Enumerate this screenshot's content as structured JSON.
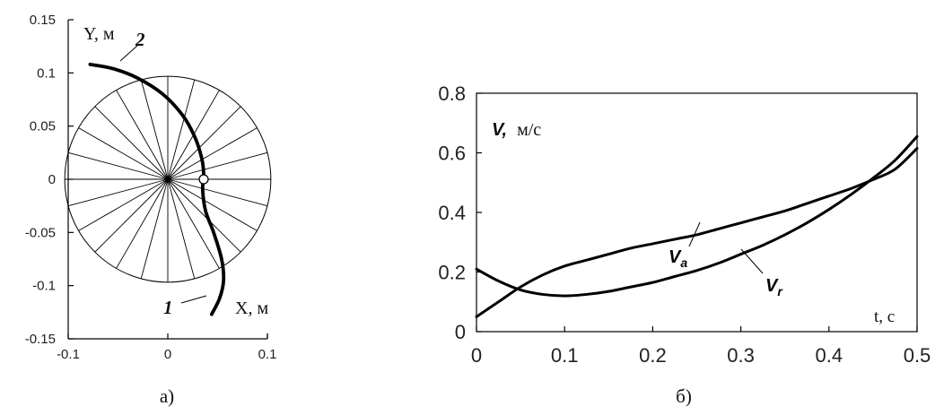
{
  "chart_data": [
    {
      "type": "line",
      "panel_label": "а)",
      "xlabel": "X, м",
      "ylabel": "Y, м",
      "xlim": [
        -0.1,
        0.1
      ],
      "ylim": [
        -0.15,
        0.15
      ],
      "xticks": [
        -0.1,
        0,
        0.1
      ],
      "yticks": [
        -0.15,
        -0.1,
        -0.05,
        0,
        0.05,
        0.1,
        0.15
      ],
      "xtick_labels": [
        "-0.1",
        "0",
        "0.1"
      ],
      "ytick_labels": [
        "-0.15",
        "-0.1",
        "-0.05",
        "0",
        "0.05",
        "0.1",
        "0.15"
      ],
      "circle": {
        "center": [
          0,
          0
        ],
        "radius": 0.1,
        "spokes": 24
      },
      "curve": {
        "x": [
          -0.078,
          -0.055,
          -0.03,
          -0.005,
          0.015,
          0.027,
          0.034,
          0.036,
          0.035,
          0.038,
          0.046,
          0.054,
          0.056,
          0.052,
          0.044
        ],
        "y": [
          0.108,
          0.104,
          0.095,
          0.08,
          0.06,
          0.04,
          0.02,
          0.005,
          -0.01,
          -0.03,
          -0.05,
          -0.075,
          -0.095,
          -0.112,
          -0.127
        ]
      },
      "point": {
        "x": 0.036,
        "y": 0.0
      },
      "annotations": [
        "2",
        "1"
      ],
      "grid": false
    },
    {
      "type": "line",
      "panel_label": "б)",
      "xlabel": "t, с",
      "ylabel": "V, м/с",
      "ylabel_symbol": "V,",
      "ylabel_unit": "м/с",
      "xlim": [
        0,
        0.5
      ],
      "ylim": [
        0,
        0.8
      ],
      "xticks": [
        0,
        0.1,
        0.2,
        0.3,
        0.4,
        0.5
      ],
      "yticks": [
        0,
        0.2,
        0.4,
        0.6,
        0.8
      ],
      "xtick_labels": [
        "0",
        "0.1",
        "0.2",
        "0.3",
        "0.4",
        "0.5"
      ],
      "ytick_labels": [
        "0",
        "0.2",
        "0.4",
        "0.6",
        "0.8"
      ],
      "x": [
        0,
        0.025,
        0.05,
        0.075,
        0.1,
        0.125,
        0.15,
        0.175,
        0.2,
        0.225,
        0.25,
        0.275,
        0.3,
        0.325,
        0.35,
        0.375,
        0.4,
        0.425,
        0.45,
        0.475,
        0.5
      ],
      "series": [
        {
          "name": "V",
          "subscript": "a",
          "values": [
            0.05,
            0.1,
            0.15,
            0.19,
            0.22,
            0.24,
            0.26,
            0.28,
            0.295,
            0.31,
            0.325,
            0.345,
            0.365,
            0.385,
            0.405,
            0.43,
            0.455,
            0.48,
            0.51,
            0.545,
            0.615
          ]
        },
        {
          "name": "V",
          "subscript": "r",
          "values": [
            0.21,
            0.17,
            0.14,
            0.125,
            0.12,
            0.125,
            0.135,
            0.15,
            0.165,
            0.185,
            0.205,
            0.23,
            0.26,
            0.29,
            0.325,
            0.365,
            0.41,
            0.46,
            0.515,
            0.575,
            0.655
          ]
        }
      ],
      "grid": false
    }
  ]
}
